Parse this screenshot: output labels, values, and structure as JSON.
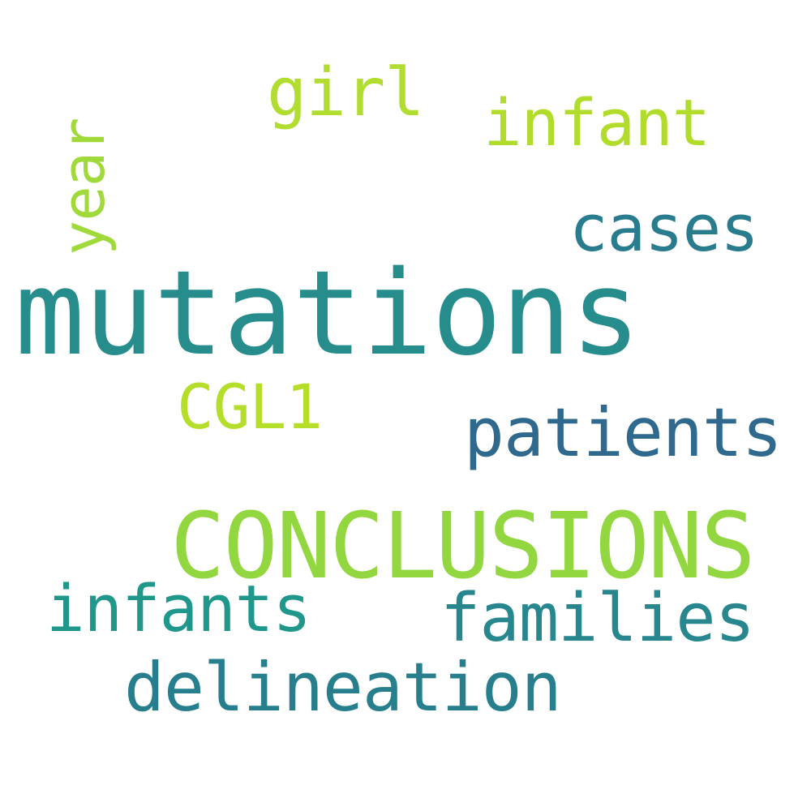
{
  "words": [
    {
      "key": "mutations",
      "text": "mutations",
      "color": "#268d8c"
    },
    {
      "key": "conclusions",
      "text": "CONCLUSIONS",
      "color": "#92d640"
    },
    {
      "key": "patients",
      "text": "patients",
      "color": "#2f6a8e"
    },
    {
      "key": "families",
      "text": "families",
      "color": "#27868e"
    },
    {
      "key": "delineation",
      "text": "delineation",
      "color": "#277f8e"
    },
    {
      "key": "infants",
      "text": "infants",
      "color": "#1f988b"
    },
    {
      "key": "cases",
      "text": "cases",
      "color": "#287c8e"
    },
    {
      "key": "infant",
      "text": "infant",
      "color": "#b2dc2b"
    },
    {
      "key": "girl",
      "text": "girl",
      "color": "#b0dd2f"
    },
    {
      "key": "cgl1",
      "text": "CGL1",
      "color": "#b5de2b"
    },
    {
      "key": "year",
      "text": "year",
      "color": "#9fda3a"
    }
  ]
}
